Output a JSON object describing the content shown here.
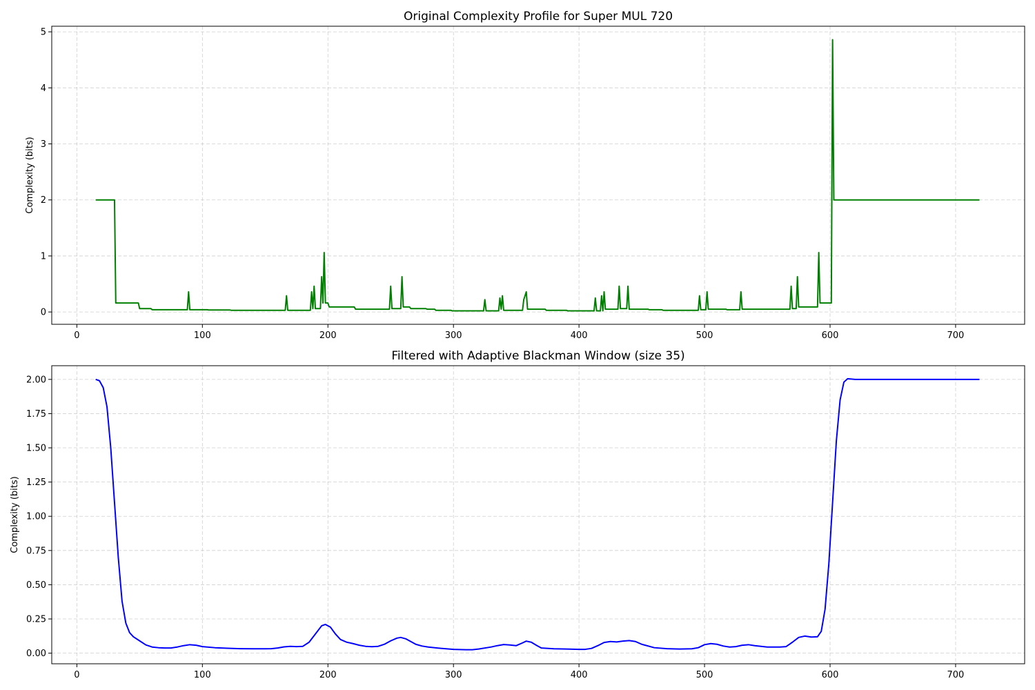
{
  "chart_data": [
    {
      "type": "line",
      "title": "Original Complexity Profile for Super MUL 720",
      "xlabel": "",
      "ylabel": "Complexity (bits)",
      "xlim": [
        -20,
        755
      ],
      "ylim": [
        -0.22,
        5.1
      ],
      "xticks": [
        0,
        100,
        200,
        300,
        400,
        500,
        600,
        700
      ],
      "xtick_labels": [
        "0",
        "100",
        "200",
        "300",
        "400",
        "500",
        "600",
        "700"
      ],
      "yticks": [
        0,
        1,
        2,
        3,
        4,
        5
      ],
      "ytick_labels": [
        "0",
        "1",
        "2",
        "3",
        "4",
        "5"
      ],
      "grid": true,
      "legend": "none",
      "series": [
        {
          "color": "#008000",
          "x": [
            15,
            30,
            31,
            49,
            50,
            59,
            60,
            88,
            89,
            90,
            104,
            105,
            122,
            123,
            166,
            167,
            168,
            186,
            187,
            188,
            189,
            190,
            194,
            195,
            196,
            197,
            198,
            200,
            201,
            221,
            222,
            249,
            250,
            251,
            258,
            259,
            260,
            265,
            266,
            278,
            279,
            285,
            286,
            298,
            299,
            324,
            325,
            326,
            336,
            337,
            338,
            339,
            340,
            355,
            356,
            358,
            359,
            360,
            373,
            374,
            390,
            391,
            412,
            413,
            414,
            417,
            418,
            419,
            420,
            421,
            422,
            423,
            431,
            432,
            433,
            434,
            438,
            439,
            440,
            441,
            442,
            455,
            456,
            466,
            467,
            495,
            496,
            497,
            501,
            502,
            503,
            504,
            517,
            518,
            528,
            529,
            530,
            568,
            569,
            570,
            573,
            574,
            575,
            590,
            591,
            592,
            601,
            602,
            603,
            604,
            719
          ],
          "y": [
            2.0,
            2.0,
            0.16,
            0.16,
            0.06,
            0.06,
            0.04,
            0.04,
            0.36,
            0.04,
            0.04,
            0.035,
            0.035,
            0.03,
            0.03,
            0.29,
            0.03,
            0.03,
            0.36,
            0.06,
            0.46,
            0.06,
            0.06,
            0.63,
            0.16,
            1.06,
            0.16,
            0.16,
            0.09,
            0.09,
            0.05,
            0.05,
            0.46,
            0.06,
            0.06,
            0.63,
            0.09,
            0.09,
            0.06,
            0.06,
            0.05,
            0.05,
            0.03,
            0.03,
            0.02,
            0.02,
            0.22,
            0.02,
            0.02,
            0.25,
            0.05,
            0.29,
            0.03,
            0.03,
            0.22,
            0.36,
            0.05,
            0.05,
            0.05,
            0.03,
            0.03,
            0.02,
            0.02,
            0.25,
            0.02,
            0.02,
            0.29,
            0.02,
            0.36,
            0.05,
            0.05,
            0.05,
            0.05,
            0.46,
            0.06,
            0.06,
            0.06,
            0.46,
            0.05,
            0.05,
            0.05,
            0.05,
            0.04,
            0.04,
            0.03,
            0.03,
            0.29,
            0.04,
            0.04,
            0.36,
            0.05,
            0.05,
            0.05,
            0.04,
            0.04,
            0.36,
            0.05,
            0.05,
            0.46,
            0.06,
            0.06,
            0.63,
            0.09,
            0.09,
            1.06,
            0.16,
            0.16,
            4.86,
            2.0,
            2.0,
            2.0
          ]
        }
      ]
    },
    {
      "type": "line",
      "title": "Filtered with Adaptive Blackman Window (size 35)",
      "xlabel": "",
      "ylabel": "Complexity (bits)",
      "xlim": [
        -20,
        755
      ],
      "ylim": [
        -0.0775,
        2.1
      ],
      "xticks": [
        0,
        100,
        200,
        300,
        400,
        500,
        600,
        700
      ],
      "xtick_labels": [
        "0",
        "100",
        "200",
        "300",
        "400",
        "500",
        "600",
        "700"
      ],
      "yticks": [
        0,
        0.25,
        0.5,
        0.75,
        1.0,
        1.25,
        1.5,
        1.75,
        2.0
      ],
      "ytick_labels": [
        "0.00",
        "0.25",
        "0.50",
        "0.75",
        "1.00",
        "1.25",
        "1.50",
        "1.75",
        "2.00"
      ],
      "grid": true,
      "legend": "none",
      "series": [
        {
          "color": "#0000ff",
          "x": [
            15,
            18,
            21,
            24,
            27,
            30,
            33,
            36,
            39,
            42,
            45,
            50,
            55,
            60,
            65,
            70,
            75,
            80,
            85,
            90,
            95,
            100,
            110,
            120,
            130,
            140,
            150,
            155,
            160,
            165,
            170,
            175,
            180,
            185,
            190,
            195,
            198,
            202,
            206,
            210,
            215,
            220,
            225,
            230,
            235,
            240,
            245,
            250,
            255,
            258,
            262,
            266,
            270,
            275,
            280,
            290,
            300,
            310,
            315,
            320,
            330,
            335,
            340,
            345,
            350,
            355,
            358,
            362,
            366,
            370,
            380,
            390,
            400,
            405,
            410,
            415,
            420,
            425,
            430,
            435,
            440,
            445,
            450,
            460,
            470,
            480,
            490,
            495,
            500,
            505,
            510,
            515,
            520,
            525,
            530,
            535,
            540,
            550,
            560,
            565,
            570,
            575,
            580,
            585,
            590,
            593,
            596,
            599,
            602,
            605,
            608,
            611,
            614,
            620,
            640,
            680,
            719
          ],
          "y": [
            2.0,
            1.99,
            1.94,
            1.8,
            1.5,
            1.1,
            0.7,
            0.38,
            0.22,
            0.15,
            0.12,
            0.09,
            0.06,
            0.045,
            0.04,
            0.038,
            0.038,
            0.045,
            0.055,
            0.062,
            0.058,
            0.048,
            0.04,
            0.036,
            0.033,
            0.032,
            0.032,
            0.033,
            0.038,
            0.046,
            0.05,
            0.048,
            0.05,
            0.08,
            0.14,
            0.2,
            0.21,
            0.19,
            0.14,
            0.1,
            0.08,
            0.07,
            0.058,
            0.05,
            0.047,
            0.05,
            0.065,
            0.09,
            0.11,
            0.115,
            0.105,
            0.085,
            0.065,
            0.052,
            0.045,
            0.035,
            0.028,
            0.025,
            0.025,
            0.03,
            0.045,
            0.055,
            0.063,
            0.06,
            0.055,
            0.075,
            0.088,
            0.08,
            0.058,
            0.038,
            0.032,
            0.03,
            0.028,
            0.028,
            0.035,
            0.055,
            0.078,
            0.085,
            0.082,
            0.088,
            0.092,
            0.085,
            0.065,
            0.04,
            0.033,
            0.03,
            0.032,
            0.04,
            0.062,
            0.07,
            0.065,
            0.052,
            0.045,
            0.048,
            0.058,
            0.062,
            0.055,
            0.045,
            0.045,
            0.048,
            0.08,
            0.115,
            0.125,
            0.118,
            0.12,
            0.16,
            0.32,
            0.65,
            1.1,
            1.55,
            1.85,
            1.98,
            2.005,
            2.0,
            2.0,
            2.0,
            2.0
          ]
        }
      ]
    }
  ]
}
